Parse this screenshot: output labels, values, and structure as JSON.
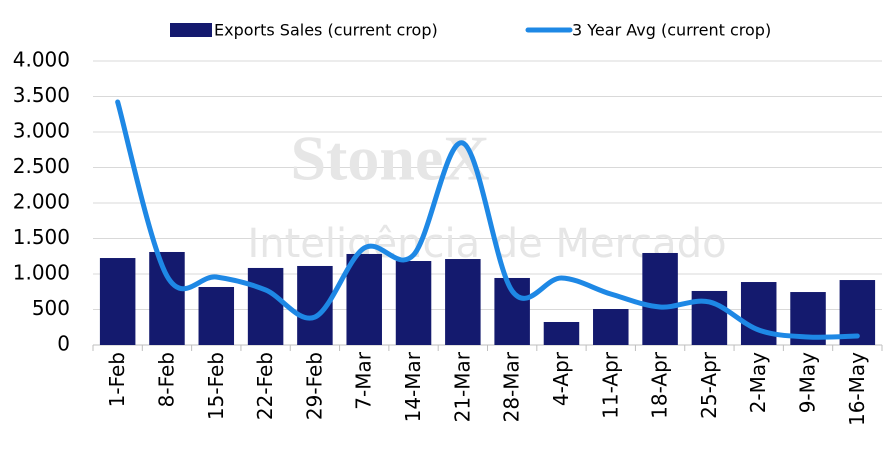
{
  "chart_data": {
    "type": "bar-line",
    "watermark": [
      "StoneX",
      "Inteligência de Mercado"
    ],
    "categories": [
      "1-Feb",
      "8-Feb",
      "15-Feb",
      "22-Feb",
      "29-Feb",
      "7-Mar",
      "14-Mar",
      "21-Mar",
      "28-Mar",
      "4-Apr",
      "11-Apr",
      "18-Apr",
      "25-Apr",
      "2-May",
      "9-May",
      "16-May"
    ],
    "series": [
      {
        "name": "Exports Sales (current crop)",
        "type": "bar",
        "color": "#141a6e",
        "values": [
          1225,
          1310,
          817,
          1085,
          1113,
          1282,
          1183,
          1211,
          944,
          324,
          507,
          1296,
          761,
          887,
          746,
          915
        ]
      },
      {
        "name": "3 Year Avg (current crop)",
        "type": "line",
        "color": "#1e88e5",
        "values": [
          3423,
          972,
          958,
          775,
          394,
          1366,
          1268,
          2845,
          761,
          944,
          718,
          535,
          606,
          211,
          113,
          127
        ]
      }
    ],
    "ylim": [
      0,
      4000
    ],
    "yticks": [
      0,
      {
        "value": 500,
        "label": "500"
      },
      {
        "value": 1000,
        "label": "1.000"
      },
      {
        "value": 1500,
        "label": "1.500"
      },
      {
        "value": 2000,
        "label": "2.000"
      },
      {
        "value": 2500,
        "label": "2.500"
      },
      {
        "value": 3000,
        "label": "3.000"
      },
      {
        "value": 3500,
        "label": "3.500"
      },
      {
        "value": 4000,
        "label": "4.000"
      }
    ],
    "grid": true,
    "legend": "top"
  }
}
